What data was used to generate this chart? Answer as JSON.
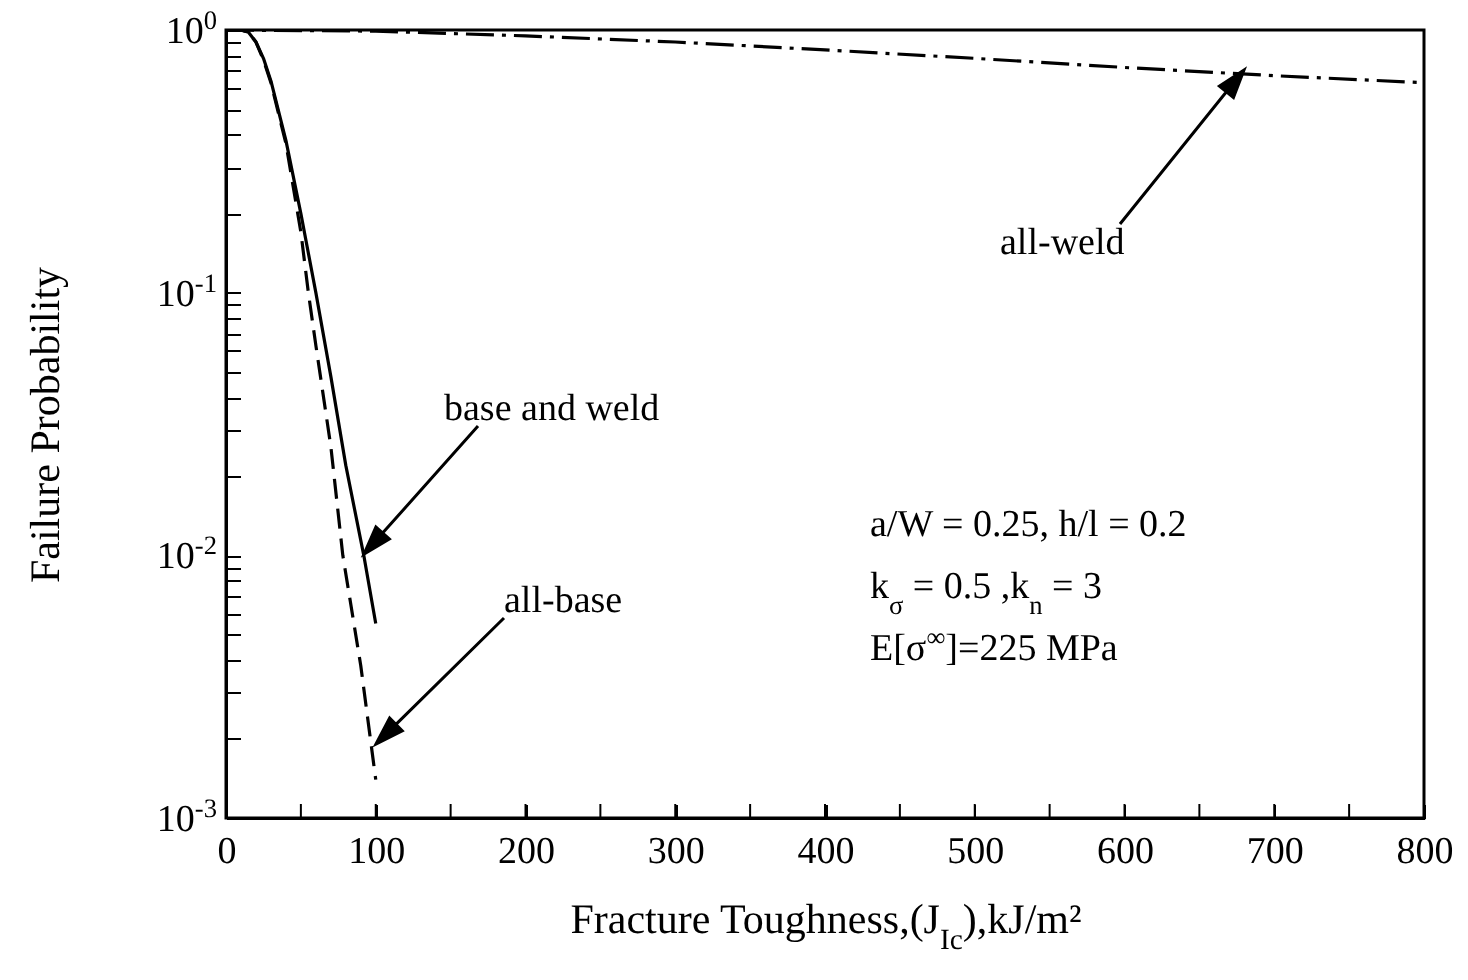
{
  "chart_data": {
    "type": "line",
    "xlabel": "Fracture Toughness,(J$_{Ic}$),kJ/m²",
    "ylabel": "Failure Probability",
    "log": "y",
    "grid": false,
    "xlim": [
      0,
      800
    ],
    "ylim": [
      0.001,
      1
    ],
    "xticks": [
      0,
      {
        "value": 50,
        "label": null
      },
      100,
      {
        "value": 150,
        "label": null
      },
      200,
      {
        "value": 250,
        "label": null
      },
      300,
      {
        "value": 350,
        "label": null
      },
      400,
      {
        "value": 450,
        "label": null
      },
      500,
      {
        "value": 550,
        "label": null
      },
      600,
      {
        "value": 650,
        "label": null
      },
      700,
      {
        "value": 750,
        "label": null
      },
      800
    ],
    "yticks": [
      {
        "value": 0.001,
        "label": "10$^{-3}$"
      },
      {
        "value": 0.002,
        "label": null
      },
      {
        "value": 0.003,
        "label": null
      },
      {
        "value": 0.004,
        "label": null
      },
      {
        "value": 0.005,
        "label": null
      },
      {
        "value": 0.006,
        "label": null
      },
      {
        "value": 0.007,
        "label": null
      },
      {
        "value": 0.008,
        "label": null
      },
      {
        "value": 0.009,
        "label": null
      },
      {
        "value": 0.01,
        "label": "10$^{-2}$"
      },
      {
        "value": 0.02,
        "label": null
      },
      {
        "value": 0.03,
        "label": null
      },
      {
        "value": 0.04,
        "label": null
      },
      {
        "value": 0.05,
        "label": null
      },
      {
        "value": 0.06,
        "label": null
      },
      {
        "value": 0.07,
        "label": null
      },
      {
        "value": 0.08,
        "label": null
      },
      {
        "value": 0.09,
        "label": null
      },
      {
        "value": 0.1,
        "label": "10$^{-1}$"
      },
      {
        "value": 0.2,
        "label": null
      },
      {
        "value": 0.3,
        "label": null
      },
      {
        "value": 0.4,
        "label": null
      },
      {
        "value": 0.5,
        "label": null
      },
      {
        "value": 0.6,
        "label": null
      },
      {
        "value": 0.7,
        "label": null
      },
      {
        "value": 0.8,
        "label": null
      },
      {
        "value": 0.9,
        "label": null
      },
      {
        "value": 1,
        "label": "10$^{0}$"
      }
    ],
    "series": [
      {
        "color": "#000000",
        "line_style": "solid",
        "x": [
          0,
          10,
          15,
          20,
          25,
          30,
          40,
          50,
          60,
          70,
          80,
          92,
          100
        ],
        "values": [
          1,
          1,
          0.98,
          0.9,
          0.78,
          0.64,
          0.38,
          0.2,
          0.1,
          0.048,
          0.022,
          0.01,
          0.0055
        ]
      },
      {
        "color": "#000000",
        "line_style": "dashed",
        "x": [
          0,
          10,
          15,
          20,
          25,
          30,
          40,
          50,
          55,
          60,
          70,
          78,
          90,
          100
        ],
        "values": [
          1,
          1,
          0.98,
          0.9,
          0.77,
          0.63,
          0.37,
          0.17,
          0.1,
          0.063,
          0.026,
          0.01,
          0.0038,
          0.0014
        ]
      },
      {
        "color": "#000000",
        "line_style": "dashdot",
        "x": [
          0,
          100,
          200,
          300,
          400,
          500,
          600,
          700,
          800
        ],
        "values": [
          1,
          0.99,
          0.95,
          0.9,
          0.84,
          0.78,
          0.72,
          0.67,
          0.63
        ]
      }
    ],
    "annotations": [
      "base and weld",
      "all-base",
      "all-weld",
      "a/W = 0.25, h/l = 0.2",
      "k$_{σ}$ = 0.5 ,k$_{n}$ = 3",
      "E[σ$^{∞}$]=225 MPa"
    ]
  }
}
